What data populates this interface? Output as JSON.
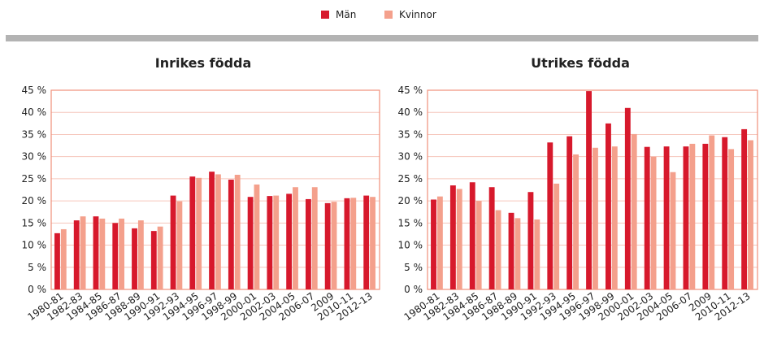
{
  "chart_data": [
    {
      "type": "bar",
      "title": "Inrikes födda",
      "categories": [
        "1980-81",
        "1982-83",
        "1984-85",
        "1986-87",
        "1988-89",
        "1990-91",
        "1992-93",
        "1994-95",
        "1996-97",
        "1998-99",
        "2000-01",
        "2002-03",
        "2004-05",
        "2006-07",
        "2009",
        "2010-11",
        "2012-13"
      ],
      "series": [
        {
          "name": "Män",
          "color": "#d7192c",
          "values": [
            12.7,
            15.6,
            16.5,
            15.0,
            13.8,
            13.2,
            21.2,
            25.5,
            26.6,
            24.8,
            20.9,
            21.1,
            21.6,
            20.4,
            19.5,
            20.6,
            21.2
          ]
        },
        {
          "name": "Kvinnor",
          "color": "#f4a08c",
          "values": [
            13.6,
            16.5,
            16.0,
            16.0,
            15.6,
            14.2,
            19.9,
            25.2,
            26.0,
            25.9,
            23.7,
            21.2,
            23.1,
            23.1,
            19.8,
            20.7,
            20.9
          ]
        }
      ],
      "ylim": [
        0,
        45
      ],
      "yticks": [
        {
          "value": 0,
          "label": "0 %"
        },
        {
          "value": 5,
          "label": "5 %"
        },
        {
          "value": 10,
          "label": "10 %"
        },
        {
          "value": 15,
          "label": "15 %"
        },
        {
          "value": 20,
          "label": "20 %"
        },
        {
          "value": 25,
          "label": "25 %"
        },
        {
          "value": 30,
          "label": "30 %"
        },
        {
          "value": 35,
          "label": "35 %"
        },
        {
          "value": 40,
          "label": "40 %"
        },
        {
          "value": 45,
          "label": "45 %"
        }
      ],
      "grid": true
    },
    {
      "type": "bar",
      "title": "Utrikes födda",
      "categories": [
        "1980-81",
        "1982-83",
        "1984-85",
        "1986-87",
        "1988-89",
        "1990-91",
        "1992-93",
        "1994-95",
        "1996-97",
        "1998-99",
        "2000-01",
        "2002-03",
        "2004-05",
        "2006-07",
        "2009",
        "2010-11",
        "2012-13"
      ],
      "series": [
        {
          "color": "#d7192c",
          "values": [
            20.3,
            23.5,
            24.2,
            23.1,
            17.3,
            22.0,
            33.2,
            34.6,
            44.8,
            37.5,
            41.0,
            32.2,
            32.3,
            32.3,
            32.9,
            34.4,
            36.2
          ]
        },
        {
          "color": "#f4a08c",
          "values": [
            21.0,
            22.7,
            20.0,
            17.9,
            16.1,
            15.8,
            23.9,
            30.5,
            32.0,
            32.3,
            35.1,
            30.0,
            26.5,
            32.9,
            34.8,
            31.7,
            33.7
          ]
        }
      ],
      "ylim": [
        0,
        45
      ],
      "yticks": [
        {
          "value": 0,
          "label": "0 %"
        },
        {
          "value": 5,
          "label": "5 %"
        },
        {
          "value": 10,
          "label": "10 %"
        },
        {
          "value": 15,
          "label": "15 %"
        },
        {
          "value": 20,
          "label": "20 %"
        },
        {
          "value": 25,
          "label": "25 %"
        },
        {
          "value": 30,
          "label": "30 %"
        },
        {
          "value": 35,
          "label": "35 %"
        },
        {
          "value": 40,
          "label": "40 %"
        },
        {
          "value": 45,
          "label": "45 %"
        }
      ],
      "grid": true
    }
  ]
}
